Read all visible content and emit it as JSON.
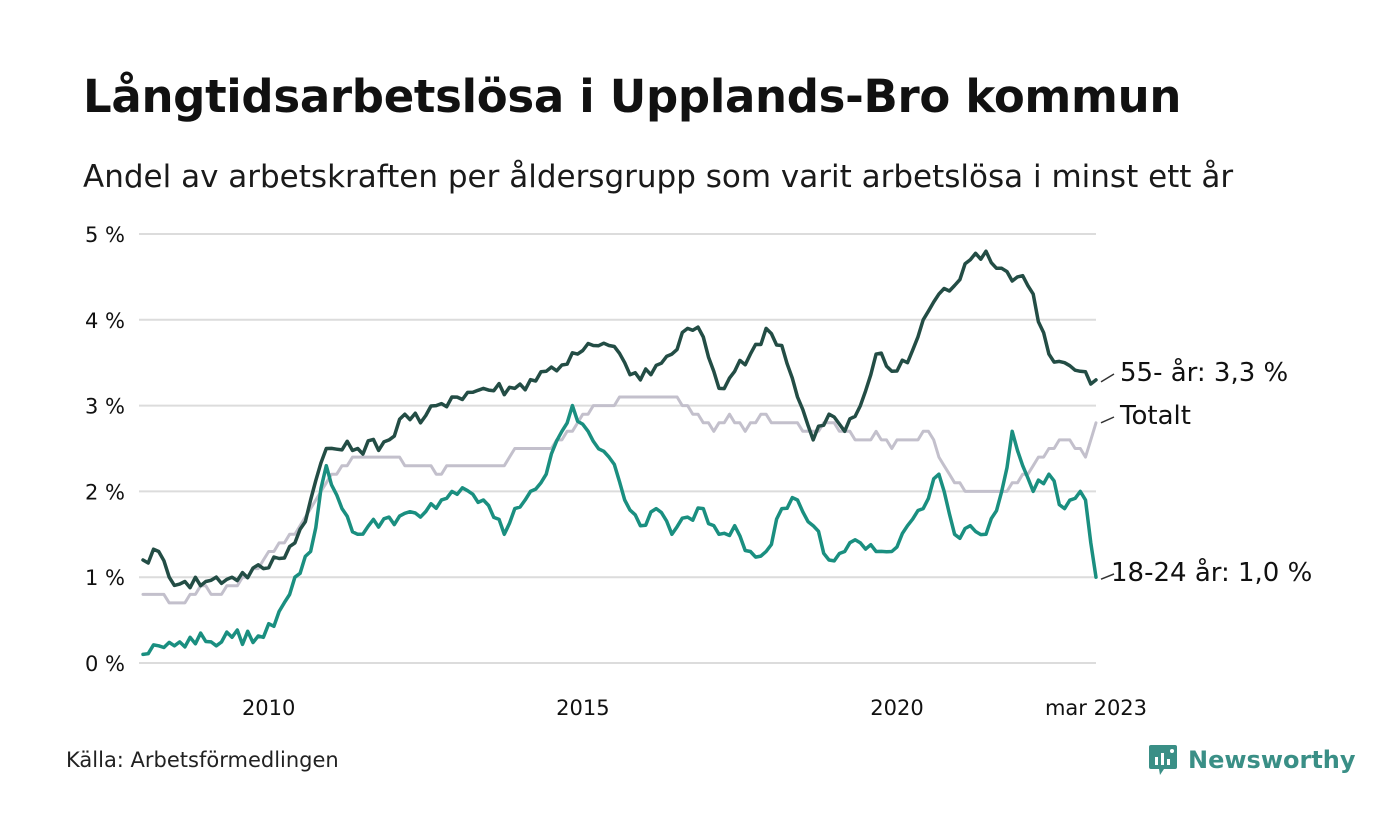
{
  "title": "Långtidsarbetslösa i Upplands-Bro kommun",
  "subtitle": "Andel av arbetskraften per åldersgrupp som varit arbetslösa i minst ett år",
  "source": "Källa: Arbetsförmedlingen",
  "brand": {
    "name": "Newsworthy",
    "icon": "newsworthy-logo-icon",
    "color": "#3a8f86"
  },
  "chart_data": {
    "type": "line",
    "title": "Långtidsarbetslösa i Upplands-Bro kommun",
    "ylabel": "",
    "xlabel": "",
    "x_start": "2008-01",
    "x_end": "2023-03",
    "frequency": "monthly",
    "ylim": [
      0,
      5
    ],
    "yticks": [
      {
        "value": 0,
        "label": "0 %"
      },
      {
        "value": 1,
        "label": "1 %"
      },
      {
        "value": 2,
        "label": "2 %"
      },
      {
        "value": 3,
        "label": "3 %"
      },
      {
        "value": 4,
        "label": "4 %"
      },
      {
        "value": 5,
        "label": "5 %"
      }
    ],
    "xticks": [
      {
        "date": "2010-01",
        "label": "2010"
      },
      {
        "date": "2015-01",
        "label": "2015"
      },
      {
        "date": "2020-01",
        "label": "2020"
      },
      {
        "date": "2023-03",
        "label": "mar 2023"
      }
    ],
    "grid": "horizontal",
    "legend": "end-labels",
    "series": [
      {
        "name": "Totalt",
        "color": "#c3c0cc",
        "end_label": "Totalt",
        "keypoints": [
          [
            "2008-01",
            0.8
          ],
          [
            "2008-04",
            0.8
          ],
          [
            "2008-06",
            0.7
          ],
          [
            "2008-09",
            0.7
          ],
          [
            "2008-12",
            0.9
          ],
          [
            "2009-03",
            0.8
          ],
          [
            "2009-06",
            0.9
          ],
          [
            "2009-09",
            1.0
          ],
          [
            "2009-12",
            1.2
          ],
          [
            "2010-06",
            1.5
          ],
          [
            "2010-12",
            2.1
          ],
          [
            "2011-06",
            2.4
          ],
          [
            "2011-12",
            2.4
          ],
          [
            "2012-06",
            2.3
          ],
          [
            "2012-10",
            2.2
          ],
          [
            "2012-12",
            2.3
          ],
          [
            "2013-06",
            2.3
          ],
          [
            "2013-10",
            2.3
          ],
          [
            "2013-12",
            2.5
          ],
          [
            "2014-06",
            2.5
          ],
          [
            "2014-09",
            2.6
          ],
          [
            "2014-12",
            2.8
          ],
          [
            "2015-03",
            3.0
          ],
          [
            "2015-06",
            3.0
          ],
          [
            "2015-09",
            3.1
          ],
          [
            "2016-03",
            3.1
          ],
          [
            "2016-06",
            3.1
          ],
          [
            "2016-09",
            3.0
          ],
          [
            "2016-12",
            2.8
          ],
          [
            "2017-02",
            2.7
          ],
          [
            "2017-05",
            2.9
          ],
          [
            "2017-08",
            2.7
          ],
          [
            "2017-11",
            2.9
          ],
          [
            "2018-03",
            2.8
          ],
          [
            "2018-09",
            2.7
          ],
          [
            "2018-12",
            2.8
          ],
          [
            "2019-03",
            2.7
          ],
          [
            "2019-06",
            2.6
          ],
          [
            "2019-08",
            2.6
          ],
          [
            "2019-09",
            2.7
          ],
          [
            "2019-12",
            2.5
          ],
          [
            "2020-02",
            2.6
          ],
          [
            "2020-05",
            2.6
          ],
          [
            "2020-07",
            2.7
          ],
          [
            "2020-09",
            2.4
          ],
          [
            "2020-12",
            2.1
          ],
          [
            "2021-02",
            2.0
          ],
          [
            "2021-06",
            2.0
          ],
          [
            "2021-09",
            2.0
          ],
          [
            "2021-12",
            2.1
          ],
          [
            "2022-03",
            2.3
          ],
          [
            "2022-06",
            2.5
          ],
          [
            "2022-09",
            2.6
          ],
          [
            "2022-12",
            2.5
          ],
          [
            "2023-01",
            2.4
          ],
          [
            "2023-03",
            2.8
          ]
        ],
        "last_value": 2.8
      },
      {
        "name": "55- år",
        "color": "#234d45",
        "end_label": "55- år: 3,3 %",
        "keypoints": [
          [
            "2008-01",
            1.2
          ],
          [
            "2008-04",
            1.3
          ],
          [
            "2008-06",
            1.0
          ],
          [
            "2008-09",
            0.95
          ],
          [
            "2009-01",
            0.95
          ],
          [
            "2009-06",
            1.0
          ],
          [
            "2009-12",
            1.1
          ],
          [
            "2010-06",
            1.4
          ],
          [
            "2010-09",
            1.9
          ],
          [
            "2010-12",
            2.5
          ],
          [
            "2011-06",
            2.5
          ],
          [
            "2011-12",
            2.6
          ],
          [
            "2012-03",
            2.9
          ],
          [
            "2012-06",
            2.8
          ],
          [
            "2012-09",
            3.0
          ],
          [
            "2012-12",
            3.1
          ],
          [
            "2013-06",
            3.2
          ],
          [
            "2013-12",
            3.2
          ],
          [
            "2014-06",
            3.4
          ],
          [
            "2014-12",
            3.6
          ],
          [
            "2015-03",
            3.7
          ],
          [
            "2015-06",
            3.7
          ],
          [
            "2015-09",
            3.5
          ],
          [
            "2015-12",
            3.3
          ],
          [
            "2016-06",
            3.6
          ],
          [
            "2016-09",
            3.9
          ],
          [
            "2016-12",
            3.8
          ],
          [
            "2017-03",
            3.2
          ],
          [
            "2017-06",
            3.4
          ],
          [
            "2017-09",
            3.6
          ],
          [
            "2017-12",
            3.9
          ],
          [
            "2018-03",
            3.7
          ],
          [
            "2018-06",
            3.1
          ],
          [
            "2018-09",
            2.6
          ],
          [
            "2018-12",
            2.9
          ],
          [
            "2019-03",
            2.7
          ],
          [
            "2019-06",
            3.0
          ],
          [
            "2019-09",
            3.6
          ],
          [
            "2019-12",
            3.4
          ],
          [
            "2020-03",
            3.5
          ],
          [
            "2020-06",
            4.0
          ],
          [
            "2020-09",
            4.3
          ],
          [
            "2020-12",
            4.4
          ],
          [
            "2021-03",
            4.7
          ],
          [
            "2021-06",
            4.8
          ],
          [
            "2021-09",
            4.6
          ],
          [
            "2021-12",
            4.5
          ],
          [
            "2022-03",
            4.3
          ],
          [
            "2022-06",
            3.6
          ],
          [
            "2022-09",
            3.5
          ],
          [
            "2022-12",
            3.4
          ],
          [
            "2023-03",
            3.3
          ]
        ],
        "last_value": 3.3
      },
      {
        "name": "18-24 år",
        "color": "#1a8f80",
        "end_label": "18-24 år: 1,0 %",
        "keypoints": [
          [
            "2008-01",
            0.1
          ],
          [
            "2008-04",
            0.2
          ],
          [
            "2008-07",
            0.2
          ],
          [
            "2008-10",
            0.3
          ],
          [
            "2009-01",
            0.25
          ],
          [
            "2009-06",
            0.3
          ],
          [
            "2009-12",
            0.3
          ],
          [
            "2010-03",
            0.6
          ],
          [
            "2010-06",
            1.0
          ],
          [
            "2010-09",
            1.3
          ],
          [
            "2010-12",
            2.3
          ],
          [
            "2011-03",
            1.8
          ],
          [
            "2011-06",
            1.5
          ],
          [
            "2011-12",
            1.7
          ],
          [
            "2012-06",
            1.7
          ],
          [
            "2012-12",
            2.0
          ],
          [
            "2013-06",
            1.9
          ],
          [
            "2013-10",
            1.5
          ],
          [
            "2013-12",
            1.8
          ],
          [
            "2014-03",
            2.0
          ],
          [
            "2014-06",
            2.2
          ],
          [
            "2014-09",
            2.7
          ],
          [
            "2014-11",
            3.0
          ],
          [
            "2015-02",
            2.7
          ],
          [
            "2015-06",
            2.4
          ],
          [
            "2015-09",
            1.9
          ],
          [
            "2015-12",
            1.6
          ],
          [
            "2016-03",
            1.8
          ],
          [
            "2016-06",
            1.5
          ],
          [
            "2016-09",
            1.7
          ],
          [
            "2016-12",
            1.8
          ],
          [
            "2017-03",
            1.5
          ],
          [
            "2017-06",
            1.6
          ],
          [
            "2017-09",
            1.3
          ],
          [
            "2017-12",
            1.3
          ],
          [
            "2018-03",
            1.8
          ],
          [
            "2018-06",
            1.9
          ],
          [
            "2018-09",
            1.6
          ],
          [
            "2018-12",
            1.2
          ],
          [
            "2019-03",
            1.3
          ],
          [
            "2019-06",
            1.4
          ],
          [
            "2019-09",
            1.3
          ],
          [
            "2019-12",
            1.3
          ],
          [
            "2020-03",
            1.6
          ],
          [
            "2020-06",
            1.8
          ],
          [
            "2020-09",
            2.2
          ],
          [
            "2020-12",
            1.5
          ],
          [
            "2021-03",
            1.6
          ],
          [
            "2021-06",
            1.5
          ],
          [
            "2021-09",
            2.0
          ],
          [
            "2021-11",
            2.7
          ],
          [
            "2022-01",
            2.3
          ],
          [
            "2022-03",
            2.0
          ],
          [
            "2022-06",
            2.2
          ],
          [
            "2022-09",
            1.8
          ],
          [
            "2022-12",
            2.0
          ],
          [
            "2023-01",
            1.9
          ],
          [
            "2023-02",
            1.4
          ],
          [
            "2023-03",
            1.0
          ]
        ],
        "last_value": 1.0
      }
    ]
  }
}
